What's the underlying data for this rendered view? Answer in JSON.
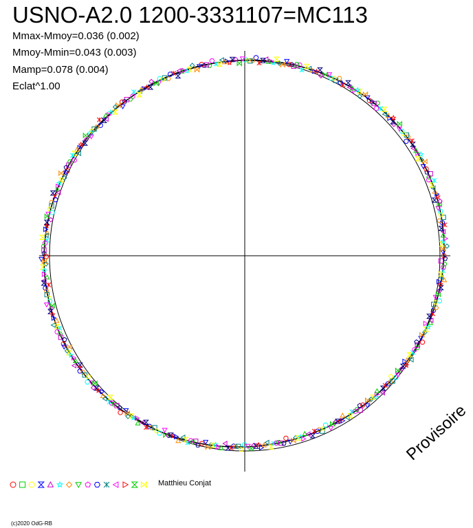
{
  "title": "USNO-A2.0 1200-3331107=MC113",
  "stats": [
    "Mmax-Mmoy=0.036 (0.002)",
    "Mmoy-Mmin=0.043 (0.003)",
    "Mamp=0.078 (0.004)",
    "Eclat^1.00"
  ],
  "watermark": "Provisoire",
  "observer": "Matthieu Conjat",
  "copyright": "(c)2020 OdG-RB",
  "chart_data": {
    "type": "scatter",
    "title": "USNO-A2.0 1200-3331107=MC113",
    "xlabel": "",
    "ylabel": "",
    "grid": false,
    "legend_position": "bottom-left",
    "projection": "polar (phase as angle, brightness as radius)",
    "reference_circle": "unit circle",
    "symbol_colors": [
      "#ff0000",
      "#00cc00",
      "#ffff00",
      "#0000ff",
      "#cc00cc",
      "#00ffff",
      "#ff8800",
      "#000080",
      "#ff00ff",
      "#008080"
    ],
    "legend_symbols": [
      {
        "shape": "circle",
        "color": "#ff0000"
      },
      {
        "shape": "square",
        "color": "#00cc00"
      },
      {
        "shape": "circle",
        "color": "#ffff00"
      },
      {
        "shape": "hourglass",
        "color": "#0000ff"
      },
      {
        "shape": "triangle",
        "color": "#cc00cc"
      },
      {
        "shape": "star",
        "color": "#00ffff"
      },
      {
        "shape": "diamond",
        "color": "#ff8800"
      },
      {
        "shape": "triangle-down",
        "color": "#00cc00"
      },
      {
        "shape": "pentagon",
        "color": "#ff00ff"
      },
      {
        "shape": "hexagon",
        "color": "#0000ff"
      },
      {
        "shape": "cross",
        "color": "#008080"
      },
      {
        "shape": "triangle-left",
        "color": "#ff00ff"
      },
      {
        "shape": "triangle-right",
        "color": "#ff0000"
      },
      {
        "shape": "hourglass",
        "color": "#00cc00"
      },
      {
        "shape": "bowtie",
        "color": "#ffff00"
      }
    ]
  }
}
